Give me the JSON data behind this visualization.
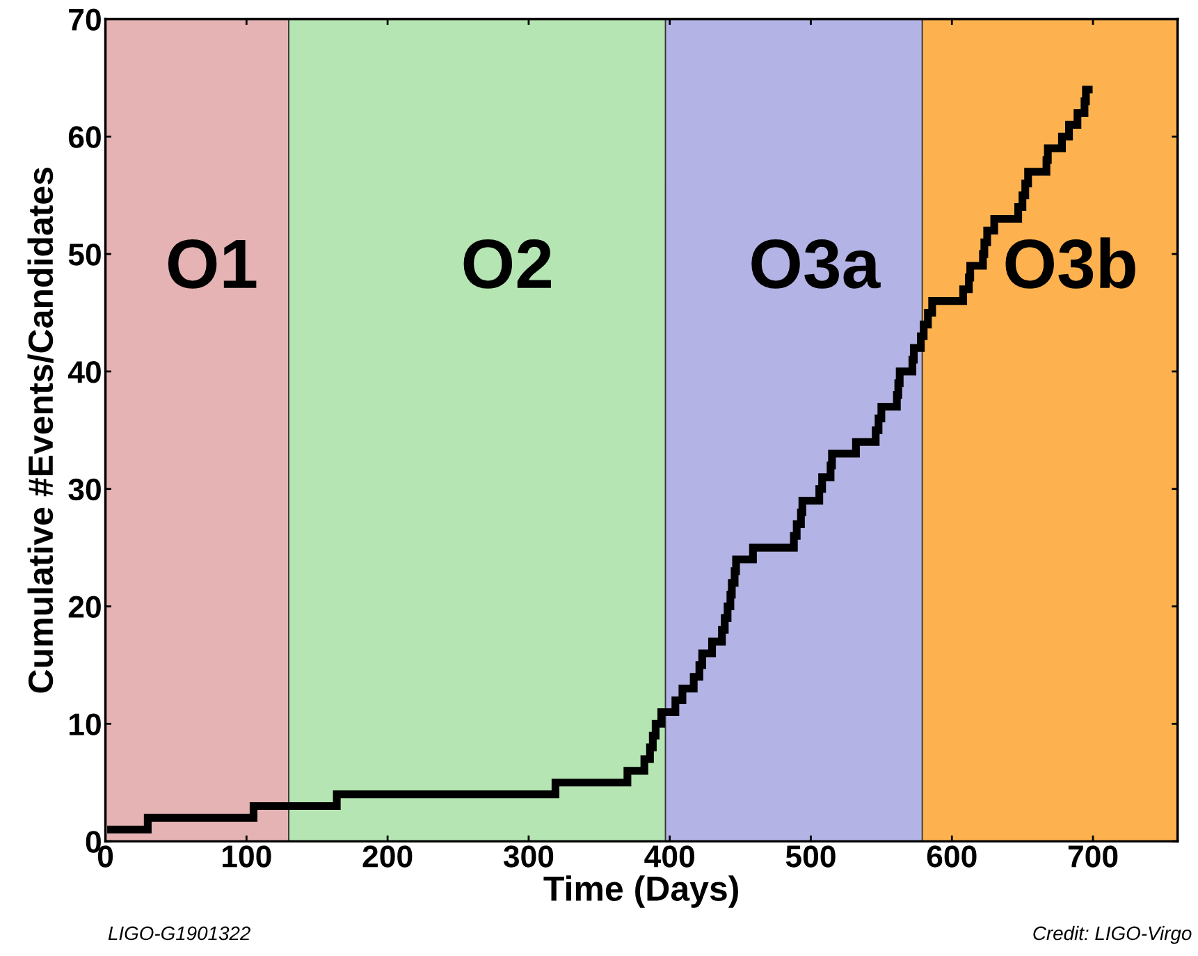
{
  "chart_data": {
    "type": "step",
    "xlabel": "Time (Days)",
    "ylabel": "Cumulative #Events/Candidates",
    "x": [
      4,
      30,
      105,
      164,
      319,
      370,
      382,
      386,
      388,
      390,
      394,
      404,
      409,
      417,
      421,
      423,
      430,
      437,
      439,
      441,
      443,
      444,
      446,
      447,
      459,
      488,
      490,
      493,
      494,
      506,
      508,
      514,
      515,
      532,
      546,
      548,
      550,
      561,
      562,
      563,
      572,
      573,
      578,
      580,
      583,
      586,
      608,
      612,
      613,
      622,
      623,
      625,
      630,
      647,
      650,
      652,
      654,
      667,
      668,
      678,
      683,
      689,
      694,
      695,
      697
    ],
    "series": [
      {
        "color": "#000000",
        "values": [
          1,
          2,
          3,
          4,
          5,
          6,
          7,
          8,
          9,
          10,
          11,
          12,
          13,
          14,
          15,
          16,
          17,
          18,
          19,
          20,
          21,
          22,
          23,
          24,
          25,
          26,
          27,
          28,
          29,
          30,
          31,
          32,
          33,
          34,
          35,
          36,
          37,
          38,
          39,
          40,
          41,
          42,
          43,
          44,
          45,
          46,
          47,
          48,
          49,
          50,
          51,
          52,
          53,
          54,
          55,
          56,
          57,
          58,
          59,
          60,
          61,
          62,
          63,
          64,
          64
        ]
      }
    ],
    "xlim": [
      0,
      760
    ],
    "ylim": [
      0,
      70
    ],
    "xticks": [
      0,
      100,
      200,
      300,
      400,
      500,
      600,
      700
    ],
    "yticks": [
      0,
      10,
      20,
      30,
      40,
      50,
      60,
      70
    ],
    "bands": [
      {
        "axis": "x",
        "from": 0,
        "to": 130,
        "label": "O1",
        "color": "#e5b3b3"
      },
      {
        "axis": "x",
        "from": 130,
        "to": 397,
        "label": "O2",
        "color": "#b4e5b2"
      },
      {
        "axis": "x",
        "from": 397,
        "to": 579,
        "label": "O3a",
        "color": "#b3b3e5"
      },
      {
        "axis": "x",
        "from": 579,
        "to": 760,
        "label": "O3b",
        "color": "#fdb24f"
      }
    ],
    "annotations": [
      "LIGO-G1901322",
      "Credit: LIGO-Virgo"
    ],
    "grid": false,
    "legend": false
  }
}
